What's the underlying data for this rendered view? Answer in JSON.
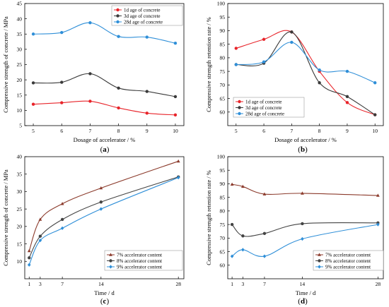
{
  "chart_data": [
    {
      "id": "a",
      "panel_label": "a",
      "type": "line",
      "xlabel": "Dosage of accelerator / %",
      "ylabel": "Compressive strength of concrete / MPa",
      "x": [
        5,
        6,
        7,
        8,
        9,
        10
      ],
      "xlim": [
        4.7,
        10.3
      ],
      "xticks": [
        5,
        6,
        7,
        8,
        9,
        10
      ],
      "ylim": [
        5,
        45
      ],
      "yticks": [
        5,
        10,
        15,
        20,
        25,
        30,
        35,
        40,
        45
      ],
      "legend_position": "top-right",
      "grid": false,
      "series": [
        {
          "name": "1d   age of concrete",
          "color": "#e8242a",
          "marker": "circle",
          "values": [
            12,
            12.5,
            13,
            10.8,
            9.1,
            8.5
          ]
        },
        {
          "name": "3d   age of concrete",
          "color": "#3a3a3a",
          "marker": "circle",
          "values": [
            19,
            19.2,
            22,
            17.3,
            16.2,
            14.5
          ]
        },
        {
          "name": "28d age of concrete",
          "color": "#2f8fd8",
          "marker": "circle",
          "values": [
            35,
            35.5,
            38.7,
            34.2,
            34,
            32
          ]
        }
      ]
    },
    {
      "id": "b",
      "panel_label": "b",
      "type": "line",
      "xlabel": "Dosage of accelerator / %",
      "ylabel": "Compressive strength retention rate / %",
      "x": [
        5,
        6,
        7,
        8,
        9,
        10
      ],
      "xlim": [
        4.7,
        10.3
      ],
      "xticks": [
        5,
        6,
        7,
        8,
        9,
        10
      ],
      "ylim": [
        55,
        100
      ],
      "yticks": [
        60,
        65,
        70,
        75,
        80,
        85,
        90,
        95,
        100
      ],
      "legend_position": "bottom-left",
      "grid": false,
      "series": [
        {
          "name": "1d   age of concrete",
          "color": "#e8242a",
          "marker": "circle",
          "values": [
            83.5,
            86.8,
            89.5,
            75,
            63.5,
            59
          ]
        },
        {
          "name": "3d   age of concrete",
          "color": "#3a3a3a",
          "marker": "circle",
          "values": [
            77.5,
            78,
            89.5,
            70.8,
            65.7,
            59
          ]
        },
        {
          "name": "28d age of concrete",
          "color": "#2f8fd8",
          "marker": "circle",
          "values": [
            77.5,
            78.5,
            85.7,
            75.5,
            75,
            70.8
          ]
        }
      ]
    },
    {
      "id": "c",
      "panel_label": "c",
      "type": "line",
      "xlabel": "Time / d",
      "ylabel": "Compressive strength of concrete / MPa",
      "x": [
        1,
        3,
        7,
        14,
        28
      ],
      "xlim": [
        0.2,
        29
      ],
      "xticks": [
        1,
        3,
        7,
        14,
        28
      ],
      "ylim": [
        5,
        40
      ],
      "yticks": [
        10,
        15,
        20,
        25,
        30,
        35,
        40
      ],
      "legend_position": "bottom-right",
      "grid": false,
      "series": [
        {
          "name": "7%   accelerator content",
          "color": "#8b3a2b",
          "marker": "triangle",
          "values": [
            13,
            22,
            26.5,
            31,
            38.7
          ]
        },
        {
          "name": "8%   accelerator content",
          "color": "#444444",
          "marker": "circle",
          "values": [
            11,
            17.2,
            22,
            27,
            34.2
          ]
        },
        {
          "name": "9%   accelerator content",
          "color": "#2f8fd8",
          "marker": "diamond",
          "values": [
            9,
            16,
            19.5,
            25,
            34
          ]
        }
      ]
    },
    {
      "id": "d",
      "panel_label": "d",
      "type": "line",
      "xlabel": "Time / d",
      "ylabel": "Compressive strength retention rate / %",
      "x": [
        1,
        3,
        7,
        14,
        28
      ],
      "xlim": [
        0.2,
        29
      ],
      "xticks": [
        1,
        3,
        7,
        14,
        28
      ],
      "ylim": [
        55,
        100
      ],
      "yticks": [
        60,
        65,
        70,
        75,
        80,
        85,
        90,
        95,
        100
      ],
      "legend_position": "bottom-right",
      "grid": false,
      "series": [
        {
          "name": "7%   accelerator content",
          "color": "#8b3a2b",
          "marker": "triangle",
          "values": [
            89.8,
            89,
            86.2,
            86.5,
            85.7
          ]
        },
        {
          "name": "8%   accelerator content",
          "color": "#444444",
          "marker": "circle",
          "values": [
            75,
            70.8,
            71.7,
            75.3,
            75.6
          ]
        },
        {
          "name": "9%   accelerator content",
          "color": "#2f8fd8",
          "marker": "diamond",
          "values": [
            63.3,
            65.7,
            63.3,
            69.7,
            75
          ]
        }
      ]
    }
  ]
}
